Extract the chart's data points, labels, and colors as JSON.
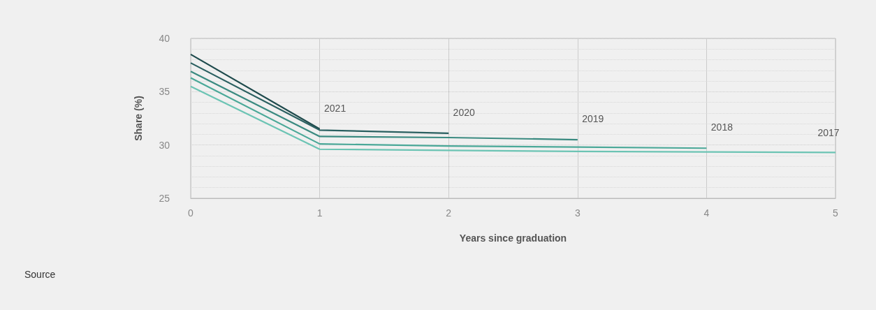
{
  "chart_data": {
    "type": "line",
    "xlabel": "Years since graduation",
    "ylabel": "Share (%)",
    "xlim": [
      0,
      5
    ],
    "xticks": [
      0,
      1,
      2,
      3,
      4,
      5
    ],
    "ylim": [
      25,
      40
    ],
    "yticks": [
      25,
      30,
      35,
      40
    ],
    "grid": true,
    "legend": false,
    "marker": "none",
    "line_style": "solid",
    "series": [
      {
        "name": "2021",
        "color": "#1e4a4c",
        "x": [
          0,
          1
        ],
        "values": [
          38.5,
          31.5
        ]
      },
      {
        "name": "2020",
        "color": "#2a5f60",
        "x": [
          0,
          1,
          2
        ],
        "values": [
          37.7,
          31.4,
          31.1
        ]
      },
      {
        "name": "2019",
        "color": "#3a8a80",
        "x": [
          0,
          1,
          2,
          3
        ],
        "values": [
          36.9,
          30.8,
          30.7,
          30.5
        ]
      },
      {
        "name": "2018",
        "color": "#4aa898",
        "x": [
          0,
          1,
          2,
          3,
          4
        ],
        "values": [
          36.3,
          30.1,
          29.9,
          29.8,
          29.7
        ]
      },
      {
        "name": "2017",
        "color": "#6cc4b4",
        "x": [
          0,
          1,
          2,
          3,
          4,
          5
        ],
        "values": [
          35.5,
          29.6,
          29.5,
          29.4,
          29.35,
          29.3
        ]
      }
    ],
    "annotations": [
      "Source"
    ]
  }
}
